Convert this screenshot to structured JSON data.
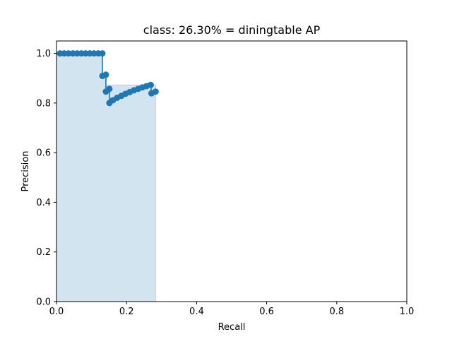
{
  "chart_data": {
    "type": "line",
    "title": "class: 26.30% = diningtable AP",
    "xlabel": "Recall",
    "ylabel": "Precision",
    "xlim": [
      0.0,
      1.0
    ],
    "ylim": [
      0.0,
      1.05
    ],
    "xticks": [
      "0.0",
      "0.2",
      "0.4",
      "0.6",
      "0.8",
      "1.0"
    ],
    "yticks": [
      "0.0",
      "0.2",
      "0.4",
      "0.6",
      "0.8",
      "1.0"
    ],
    "grid": false,
    "colors": {
      "line": "#1f77b4",
      "area_fill": "#1f77b4",
      "area_edge": "#d62728"
    },
    "series": [
      {
        "x": [
          0.01,
          0.022,
          0.034,
          0.047,
          0.059,
          0.071,
          0.083,
          0.095,
          0.107,
          0.119,
          0.131,
          0.131,
          0.141,
          0.141,
          0.151,
          0.151,
          0.161,
          0.173,
          0.185,
          0.197,
          0.209,
          0.221,
          0.233,
          0.245,
          0.257,
          0.269,
          0.271,
          0.283
        ],
        "y": [
          1.0,
          1.0,
          1.0,
          1.0,
          1.0,
          1.0,
          1.0,
          1.0,
          1.0,
          1.0,
          1.0,
          0.909,
          0.914,
          0.846,
          0.857,
          0.8,
          0.811,
          0.821,
          0.829,
          0.837,
          0.844,
          0.851,
          0.857,
          0.863,
          0.868,
          0.873,
          0.839,
          0.846
        ]
      }
    ],
    "interpolated_area": {
      "x": [
        0.0,
        0.01,
        0.131,
        0.131,
        0.141,
        0.141,
        0.283,
        0.283
      ],
      "y": [
        1.0,
        1.0,
        1.0,
        0.914,
        0.914,
        0.873,
        0.873,
        0.0
      ]
    }
  }
}
